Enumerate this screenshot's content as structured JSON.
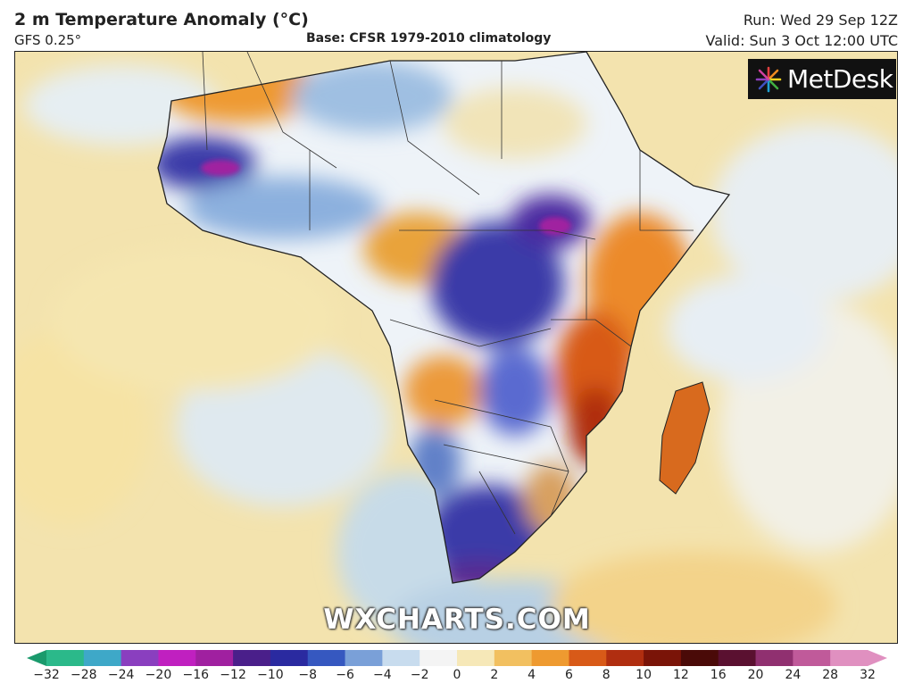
{
  "header": {
    "title": "2 m Temperature Anomaly (°C)",
    "model": "GFS 0.25°",
    "base": "Base: CFSR 1979-2010 climatology",
    "run": "Run: Wed 29 Sep 12Z",
    "valid": "Valid: Sun 3 Oct 12:00 UTC"
  },
  "brand": {
    "name": "MetDesk",
    "icon": "metdesk-starburst-logo"
  },
  "watermark": "WXCHARTS.COM",
  "colorbar": {
    "unit": "°C",
    "ticks": [
      "−32",
      "−28",
      "−24",
      "−20",
      "−16",
      "−12",
      "−10",
      "−8",
      "−6",
      "−4",
      "−2",
      "0",
      "2",
      "4",
      "6",
      "8",
      "10",
      "12",
      "16",
      "20",
      "24",
      "28",
      "32"
    ],
    "colors": [
      "#1a9a6c",
      "#2bb98a",
      "#3ea8c8",
      "#8a3fbf",
      "#c020c0",
      "#a020a0",
      "#4a1f8a",
      "#2a2aa0",
      "#3658c0",
      "#7aa0d8",
      "#c8dcee",
      "#f4f4f4",
      "#f6e8b8",
      "#f2c060",
      "#ee9a30",
      "#d85a18",
      "#b02e10",
      "#7a1408",
      "#4a0a08",
      "#5a1030",
      "#903070",
      "#c05a9a",
      "#e090c0"
    ]
  },
  "map": {
    "region": "Africa",
    "colors": {
      "ocean_warm": "#f3dfa0",
      "ocean_neutral": "#e8eef2",
      "cold": "#3a3aa8",
      "very_cold": "#7a1fa0",
      "warm": "#ee9a30",
      "hot": "#c2441a"
    }
  }
}
